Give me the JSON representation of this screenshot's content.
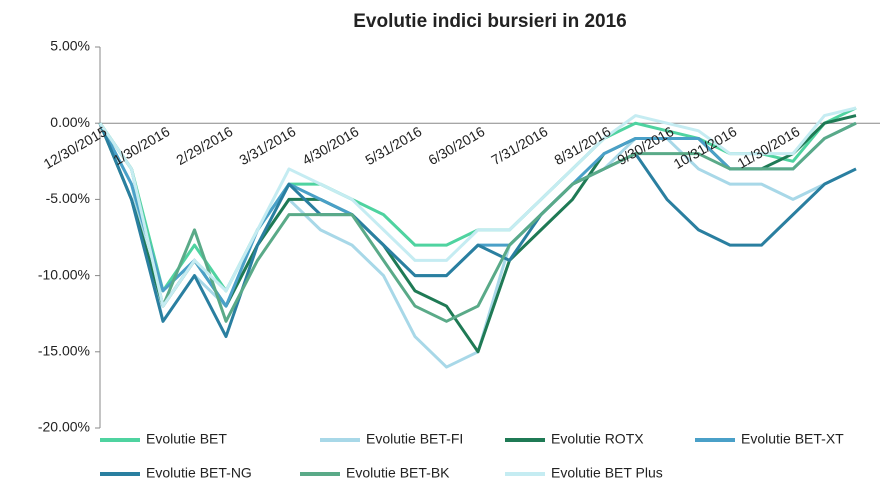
{
  "chart_data": {
    "type": "line",
    "title": "Evolutie indici bursieri in 2016",
    "categories": [
      "12/30/2015",
      null,
      "1/30/2016",
      null,
      "2/29/2016",
      null,
      "3/31/2016",
      null,
      "4/30/2016",
      null,
      "5/31/2016",
      null,
      "6/30/2016",
      null,
      "7/31/2016",
      null,
      "8/31/2016",
      null,
      "9/30/2016",
      null,
      "10/31/2016",
      null,
      "11/30/2016",
      null,
      null
    ],
    "series": [
      {
        "name": "Evolutie BET",
        "color": "#4fd3a0",
        "values": [
          0,
          -3,
          -11,
          -8,
          -11,
          -7,
          -4,
          -4,
          -5,
          -6,
          -8,
          -8,
          -7,
          -7,
          -5,
          -3,
          -1,
          0,
          -0.5,
          -1,
          -2,
          -2,
          -2.5,
          0,
          1
        ]
      },
      {
        "name": "Evolutie BET-FI",
        "color": "#a8d8e8",
        "values": [
          0,
          -4,
          -13,
          -10,
          -12,
          -8,
          -5,
          -7,
          -8,
          -10,
          -14,
          -16,
          -15,
          -8,
          -6,
          -4,
          -3,
          -1,
          -1,
          -3,
          -4,
          -4,
          -5,
          -4,
          -3
        ]
      },
      {
        "name": "Evolutie ROTX",
        "color": "#1f7a55",
        "values": [
          0,
          -5,
          -12,
          -9,
          -12,
          -8,
          -5,
          -5,
          -6,
          -8,
          -11,
          -12,
          -15,
          -9,
          -7,
          -5,
          -2,
          -1,
          -1,
          -1,
          -3,
          -3,
          -2,
          0,
          0.5
        ]
      },
      {
        "name": "Evolutie BET-XT",
        "color": "#4aa0c8",
        "values": [
          0,
          -4,
          -11,
          -9,
          -12,
          -7,
          -4,
          -5,
          -6,
          -8,
          -10,
          -10,
          -8,
          -8,
          -6,
          -4,
          -2,
          -1,
          -1,
          -1,
          -3,
          -3,
          -3,
          -1,
          0
        ]
      },
      {
        "name": "Evolutie BET-NG",
        "color": "#2a7fa0",
        "values": [
          0,
          -5,
          -13,
          -10,
          -14,
          -8,
          -4,
          -6,
          -6,
          -8,
          -10,
          -10,
          -8,
          -9,
          -6,
          -4,
          -3,
          -2,
          -5,
          -7,
          -8,
          -8,
          -6,
          -4,
          -3
        ]
      },
      {
        "name": "Evolutie BET-BK",
        "color": "#5aaa88",
        "values": [
          0,
          -3,
          -12,
          -7,
          -13,
          -9,
          -6,
          -6,
          -6,
          -9,
          -12,
          -13,
          -12,
          -8,
          -6,
          -4,
          -3,
          -2,
          -2,
          -2,
          -3,
          -3,
          -3,
          -1,
          0
        ]
      },
      {
        "name": "Evolutie BET Plus",
        "color": "#c5ecf2",
        "values": [
          0,
          -3,
          -12,
          -9,
          -11,
          -7,
          -3,
          -4,
          -5,
          -7,
          -9,
          -9,
          -7,
          -7,
          -5,
          -3,
          -1,
          0.5,
          0,
          -0.5,
          -2,
          -2,
          -2,
          0.5,
          1
        ]
      }
    ],
    "ylim": [
      -20,
      5
    ],
    "yticks": [
      {
        "value": 5,
        "label": "5.00%"
      },
      {
        "value": 0,
        "label": "0.00%"
      },
      {
        "value": -5,
        "label": "-5.00%"
      },
      {
        "value": -10,
        "label": "-10.00%"
      },
      {
        "value": -15,
        "label": "-15.00%"
      },
      {
        "value": -20,
        "label": "-20.00%"
      }
    ]
  }
}
